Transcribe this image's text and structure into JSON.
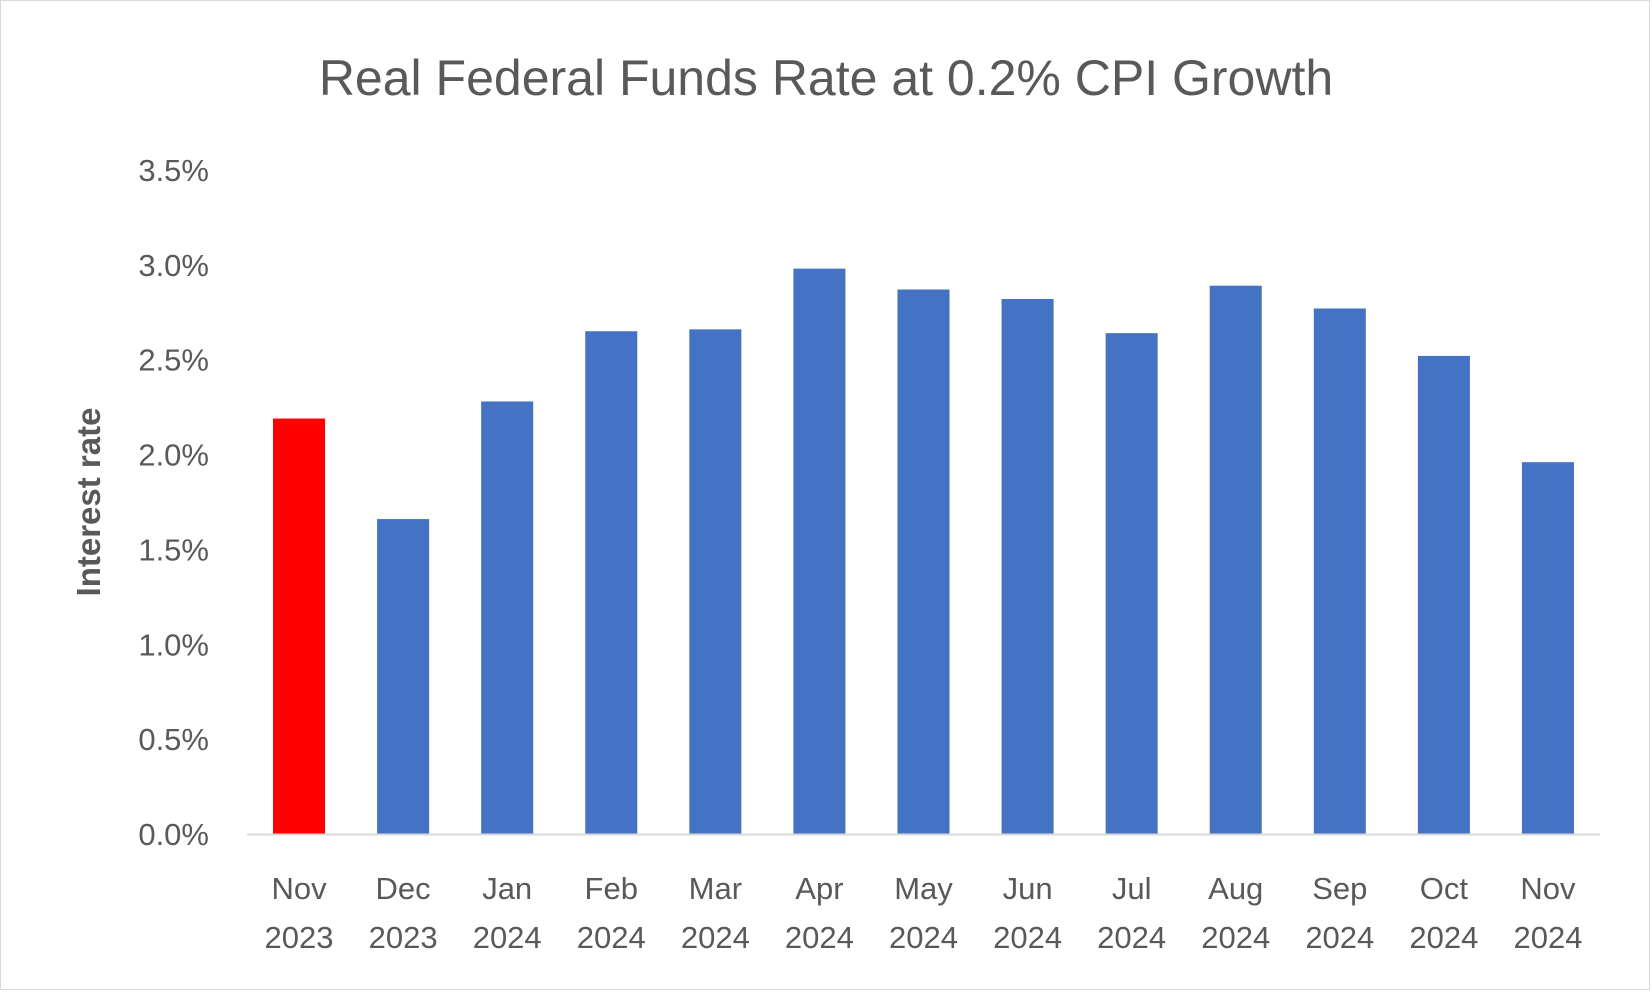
{
  "chart_data": {
    "type": "bar",
    "title": "Real Federal Funds Rate at 0.2% CPI Growth",
    "xlabel": "",
    "ylabel": "Interest rate",
    "ylim": [
      0,
      3.5
    ],
    "yticks": [
      "0.0%",
      "0.5%",
      "1.0%",
      "1.5%",
      "2.0%",
      "2.5%",
      "3.0%",
      "3.5%"
    ],
    "categories": [
      [
        "Nov",
        "2023"
      ],
      [
        "Dec",
        "2023"
      ],
      [
        "Jan",
        "2024"
      ],
      [
        "Feb",
        "2024"
      ],
      [
        "Mar",
        "2024"
      ],
      [
        "Apr",
        "2024"
      ],
      [
        "May",
        "2024"
      ],
      [
        "Jun",
        "2024"
      ],
      [
        "Jul",
        "2024"
      ],
      [
        "Aug",
        "2024"
      ],
      [
        "Sep",
        "2024"
      ],
      [
        "Oct",
        "2024"
      ],
      [
        "Nov",
        "2024"
      ]
    ],
    "values": [
      2.19,
      1.66,
      2.28,
      2.65,
      2.66,
      2.98,
      2.87,
      2.82,
      2.64,
      2.89,
      2.77,
      2.52,
      1.96
    ],
    "highlight_index": 0,
    "colors": {
      "bar": "#4472c4",
      "highlight": "#ff0000",
      "axis": "#d9d9d9",
      "text": "#595959"
    },
    "grid": false,
    "legend": "none"
  }
}
